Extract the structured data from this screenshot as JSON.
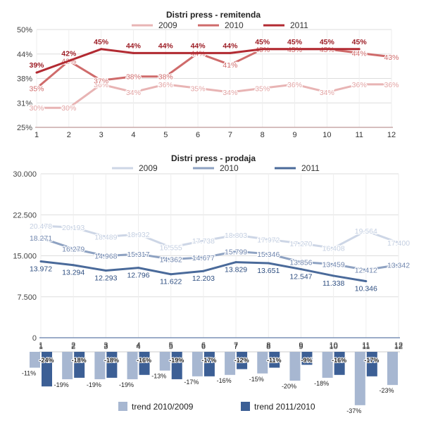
{
  "chart_data": [
    {
      "type": "line",
      "title": "Distri press - remitenda",
      "x": [
        1,
        2,
        3,
        4,
        5,
        6,
        7,
        8,
        9,
        10,
        11,
        12
      ],
      "ylim": [
        25,
        50
      ],
      "y_ticks": [
        "25%",
        "31%",
        "38%",
        "44%",
        "50%"
      ],
      "y_tick_values": [
        25,
        31.25,
        37.5,
        43.75,
        50
      ],
      "grid": true,
      "legend_position": "top",
      "series": [
        {
          "name": "2009",
          "color": "#e8b4b4",
          "values": [
            30,
            30,
            36,
            34,
            36,
            35,
            34,
            35,
            36,
            34,
            36,
            36
          ],
          "labels": [
            "30%",
            "30%",
            "36%",
            "34%",
            "36%",
            "35%",
            "34%",
            "35%",
            "36%",
            "34%",
            "36%",
            "36%"
          ]
        },
        {
          "name": "2010",
          "color": "#cf6b6b",
          "values": [
            35,
            42,
            37,
            38,
            38,
            44,
            41,
            45,
            45,
            45,
            44,
            43
          ],
          "labels": [
            "35%",
            "42%",
            "37%",
            "38%",
            "38%",
            "44%",
            "41%",
            "45%",
            "45%",
            "45%",
            "44%",
            "43%"
          ]
        },
        {
          "name": "2011",
          "color": "#b22a32",
          "values": [
            39,
            42,
            45,
            44,
            44,
            44,
            44,
            45,
            45,
            45,
            45,
            null
          ],
          "labels": [
            "39%",
            "42%",
            "45%",
            "44%",
            "44%",
            "44%",
            "44%",
            "45%",
            "45%",
            "45%",
            "45%",
            ""
          ]
        }
      ]
    },
    {
      "type": "line",
      "title": "Distri press - prodaja",
      "x": [
        1,
        2,
        3,
        4,
        5,
        6,
        7,
        8,
        9,
        10,
        11,
        12
      ],
      "ylim": [
        0,
        30000
      ],
      "y_ticks": [
        "0",
        "7.500",
        "15.000",
        "22.500",
        "30.000"
      ],
      "y_tick_values": [
        0,
        7500,
        15000,
        22500,
        30000
      ],
      "grid": true,
      "legend_position": "top",
      "series": [
        {
          "name": "2009",
          "color": "#cdd6e6",
          "values": [
            20478,
            20193,
            18489,
            18932,
            16555,
            17738,
            18803,
            17972,
            17270,
            16408,
            19564,
            17400
          ],
          "labels": [
            "20.478",
            "20.193",
            "18.489",
            "18.932",
            "16.555",
            "17.738",
            "18.803",
            "17.972",
            "17.270",
            "16.408",
            "19.564",
            "17.400"
          ]
        },
        {
          "name": "2010",
          "color": "#8ea2c2",
          "values": [
            18271,
            16279,
            14968,
            15317,
            14362,
            14677,
            15799,
            15346,
            13856,
            13459,
            12412,
            13342
          ],
          "labels": [
            "18.271",
            "16.279",
            "14.968",
            "15.317",
            "14.362",
            "14.677",
            "15.799",
            "15.346",
            "13.856",
            "13.459",
            "12.412",
            "13.342"
          ]
        },
        {
          "name": "2011",
          "color": "#4a6a9a",
          "values": [
            13972,
            13294,
            12293,
            12796,
            11622,
            12203,
            13829,
            13651,
            12547,
            11338,
            10346,
            null
          ],
          "labels": [
            "13.972",
            "13.294",
            "12.293",
            "12.796",
            "11.622",
            "12.203",
            "13.829",
            "13.651",
            "12.547",
            "11.338",
            "10.346",
            ""
          ]
        }
      ]
    },
    {
      "type": "bar",
      "categories": [
        "1",
        "2",
        "3",
        "4",
        "5",
        "6",
        "7",
        "8",
        "9",
        "10",
        "11",
        "12"
      ],
      "legend_position": "bottom",
      "series": [
        {
          "name": "trend 2010/2009",
          "color": "#a7b7d1",
          "values": [
            -11,
            -19,
            -19,
            -19,
            -13,
            -17,
            -16,
            -15,
            -20,
            -18,
            -37,
            -23
          ],
          "labels": [
            "-11%",
            "-19%",
            "-19%",
            "-19%",
            "-13%",
            "-17%",
            "-16%",
            "-15%",
            "-20%",
            "-18%",
            "-37%",
            "-23%"
          ]
        },
        {
          "name": "trend 2011/2010",
          "color": "#3c5f95",
          "values": [
            -24,
            -18,
            -18,
            -16,
            -19,
            -17,
            -12,
            -11,
            -9,
            -16,
            -17,
            null
          ],
          "labels": [
            "-24%",
            "-18%",
            "-18%",
            "-16%",
            "-19%",
            "-17%",
            "-12%",
            "-11%",
            "-9%",
            "-16%",
            "-17%",
            ""
          ]
        }
      ]
    }
  ]
}
